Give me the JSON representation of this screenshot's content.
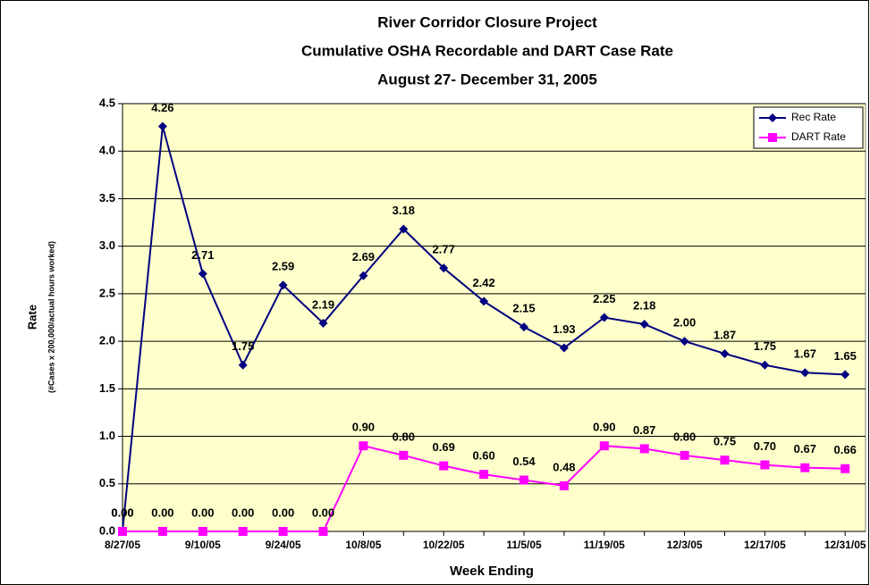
{
  "chart_data": {
    "type": "line",
    "title": [
      "River Corridor Closure Project",
      "Cumulative OSHA Recordable and DART Case Rate",
      "August 27- December 31, 2005"
    ],
    "xlabel": "Week Ending",
    "ylabel": "Rate",
    "ylabel_note": "(#Cases x 200,000/actual hours worked)",
    "categories": [
      "8/27/05",
      null,
      "9/10/05",
      null,
      "9/24/05",
      null,
      "10/8/05",
      null,
      "10/22/05",
      null,
      "11/5/05",
      null,
      "11/19/05",
      null,
      "12/3/05",
      null,
      "12/17/05",
      null,
      "12/31/05"
    ],
    "series": [
      {
        "name": "Rec Rate",
        "color": "#000080",
        "marker": "diamond",
        "values": [
          0,
          4.26,
          2.71,
          1.75,
          2.59,
          2.19,
          2.69,
          3.18,
          2.77,
          2.42,
          2.15,
          1.93,
          2.25,
          2.18,
          2.0,
          1.87,
          1.75,
          1.67,
          1.65
        ],
        "value_labels": [
          "0.00",
          "4.26",
          "2.71",
          "1.75",
          "2.59",
          "2.19",
          "2.69",
          "3.18",
          "2.77",
          "2.42",
          "2.15",
          "1.93",
          "2.25",
          "2.18",
          "2.00",
          "1.87",
          "1.75",
          "1.67",
          "1.65"
        ]
      },
      {
        "name": "DART Rate",
        "color": "#ff00ff",
        "marker": "square",
        "values": [
          0,
          0,
          0,
          0,
          0,
          0,
          0.9,
          0.8,
          0.69,
          0.6,
          0.54,
          0.48,
          0.9,
          0.87,
          0.8,
          0.75,
          0.7,
          0.67,
          0.66
        ],
        "value_labels": [
          "0.00",
          "0.00",
          "0.00",
          "0.00",
          "0.00",
          "0.00",
          "0.90",
          "0.80",
          "0.69",
          "0.60",
          "0.54",
          "0.48",
          "0.90",
          "0.87",
          "0.80",
          "0.75",
          "0.70",
          "0.67",
          "0.66"
        ]
      }
    ],
    "ylim": [
      0,
      4.5
    ],
    "yticks": [
      {
        "value": 0,
        "label": "0.0"
      },
      {
        "value": 0.5,
        "label": "0.5"
      },
      {
        "value": 1,
        "label": "1.0"
      },
      {
        "value": 1.5,
        "label": "1.5"
      },
      {
        "value": 2,
        "label": "2.0"
      },
      {
        "value": 2.5,
        "label": "2.5"
      },
      {
        "value": 3,
        "label": "3.0"
      },
      {
        "value": 3.5,
        "label": "3.5"
      },
      {
        "value": 4,
        "label": "4.0"
      },
      {
        "value": 4.5,
        "label": "4.5"
      }
    ],
    "grid": true,
    "legend": "top-right",
    "plot_background": "#ffffcc"
  }
}
